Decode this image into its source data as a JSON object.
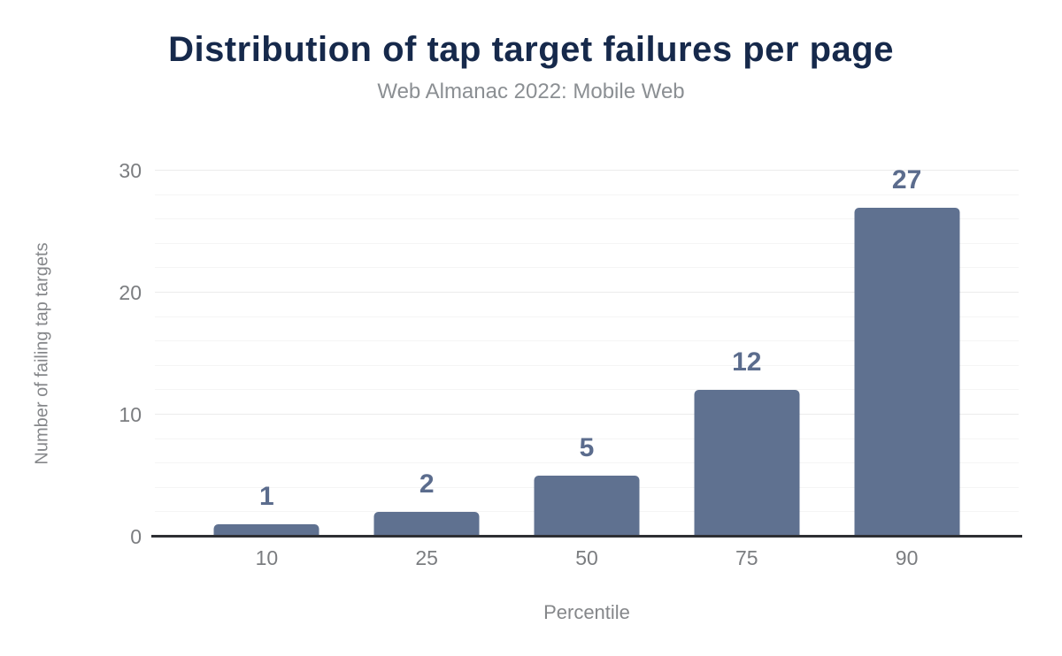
{
  "header": {
    "title": "Distribution of tap target failures per page",
    "subtitle": "Web Almanac 2022: Mobile Web"
  },
  "chart_data": {
    "type": "bar",
    "categories": [
      "10",
      "25",
      "50",
      "75",
      "90"
    ],
    "values": [
      1,
      2,
      5,
      12,
      27
    ],
    "title": "Distribution of tap target failures per page",
    "subtitle": "Web Almanac 2022: Mobile Web",
    "xlabel": "Percentile",
    "ylabel": "Number of failing tap targets",
    "ylim": [
      0,
      30
    ],
    "yticks": [
      0,
      10,
      20,
      30
    ],
    "grid_minor_step": 2,
    "grid_major_step": 10,
    "legend": "none",
    "data_labels_shown": true
  },
  "colors": {
    "title": "#16294b",
    "subtitle": "#8b8f93",
    "bar": "#5f7190",
    "data_label": "#5b6c8d",
    "tick_label": "#7b7d80",
    "axis_line": "#2d2f33",
    "grid_minor": "#f5f5f5",
    "grid_major": "#ebebeb",
    "background": "#ffffff"
  }
}
